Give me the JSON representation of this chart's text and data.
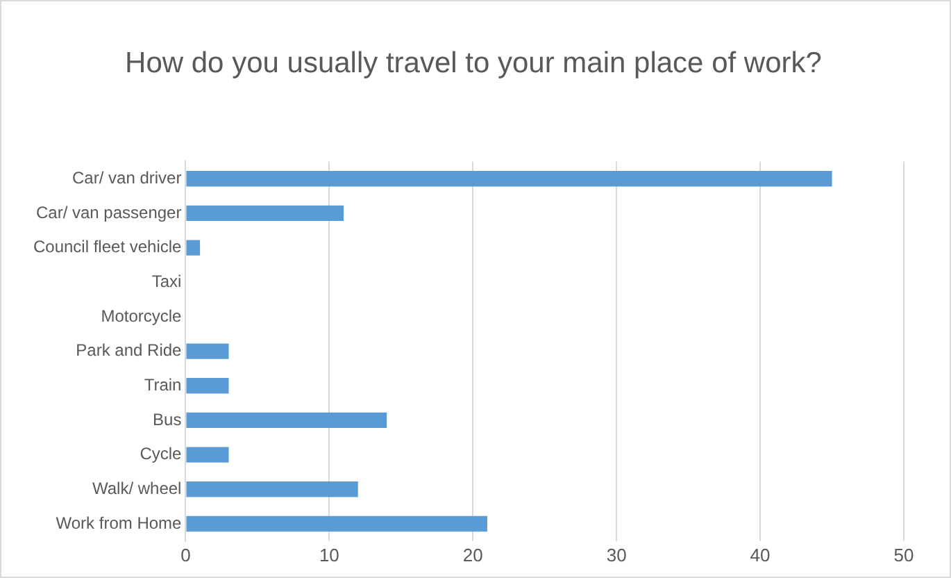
{
  "chart_data": {
    "type": "bar",
    "orientation": "horizontal",
    "title": "How do you usually travel to your main place of work?",
    "categories": [
      "Car/ van driver",
      "Car/ van passenger",
      "Council fleet vehicle",
      "Taxi",
      "Motorcycle",
      "Park and Ride",
      "Train",
      "Bus",
      "Cycle",
      "Walk/ wheel",
      "Work from Home"
    ],
    "values": [
      45,
      11,
      1,
      0,
      0,
      3,
      3,
      14,
      3,
      12,
      21
    ],
    "color": "#5b9bd5",
    "xlim": [
      0,
      50
    ],
    "xticks": [
      0,
      10,
      20,
      30,
      40,
      50
    ],
    "grid": "x",
    "legend": false
  }
}
